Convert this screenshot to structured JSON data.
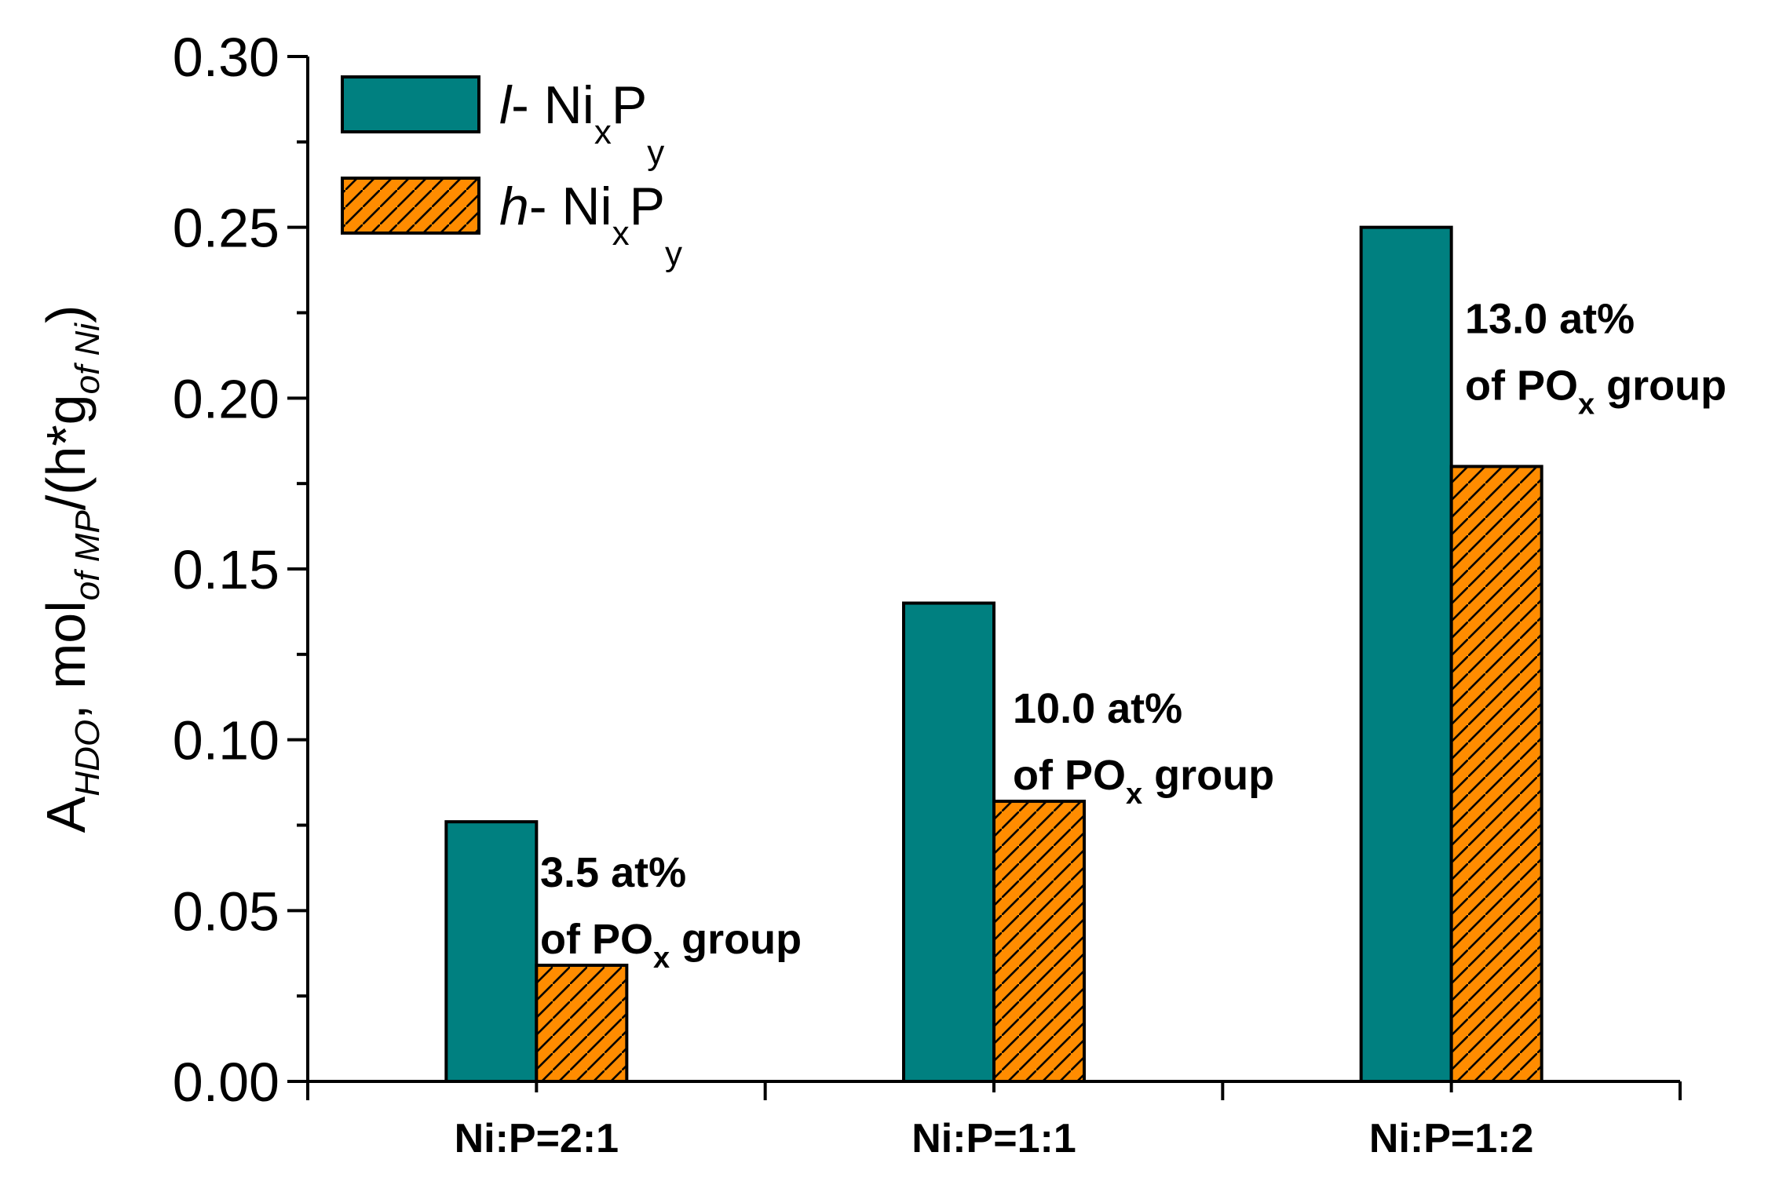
{
  "chart_data": {
    "type": "bar",
    "categories": [
      "Ni:P=2:1",
      "Ni:P=1:1",
      "Ni:P=1:2"
    ],
    "series": [
      {
        "name": "l- NixPy",
        "prefix": "l",
        "base": "- Ni",
        "sub1": "x",
        "mid": "P",
        "sub2": "y",
        "color": "#008080",
        "pattern": "solid",
        "values": [
          0.076,
          0.14,
          0.25
        ]
      },
      {
        "name": "h- NixPy",
        "prefix": "h",
        "base": "- Ni",
        "sub1": "x",
        "mid": "P",
        "sub2": "y",
        "color": "#ff8c00",
        "pattern": "hatched",
        "values": [
          0.034,
          0.082,
          0.18
        ]
      }
    ],
    "ylabel": {
      "main": "A",
      "sub1": "HDO",
      "mid1": ", mol",
      "sub2": "of MP",
      "mid2": "/(h*g",
      "sub3": "of Ni",
      "end": ")"
    },
    "xlabel": "",
    "ylim": [
      0.0,
      0.3
    ],
    "yticks": [
      "0.00",
      "0.05",
      "0.10",
      "0.15",
      "0.20",
      "0.25",
      "0.30"
    ],
    "ytick_values": [
      0.0,
      0.05,
      0.1,
      0.15,
      0.2,
      0.25,
      0.3
    ],
    "legend_position": "top-left",
    "annotations": [
      {
        "line1": "3.5 at%",
        "line2_a": "of PO",
        "line2_sub": "x",
        "line2_b": " group"
      },
      {
        "line1": "10.0 at%",
        "line2_a": "of PO",
        "line2_sub": "x",
        "line2_b": " group"
      },
      {
        "line1": "13.0 at%",
        "line2_a": "of PO",
        "line2_sub": "x",
        "line2_b": " group"
      }
    ]
  }
}
